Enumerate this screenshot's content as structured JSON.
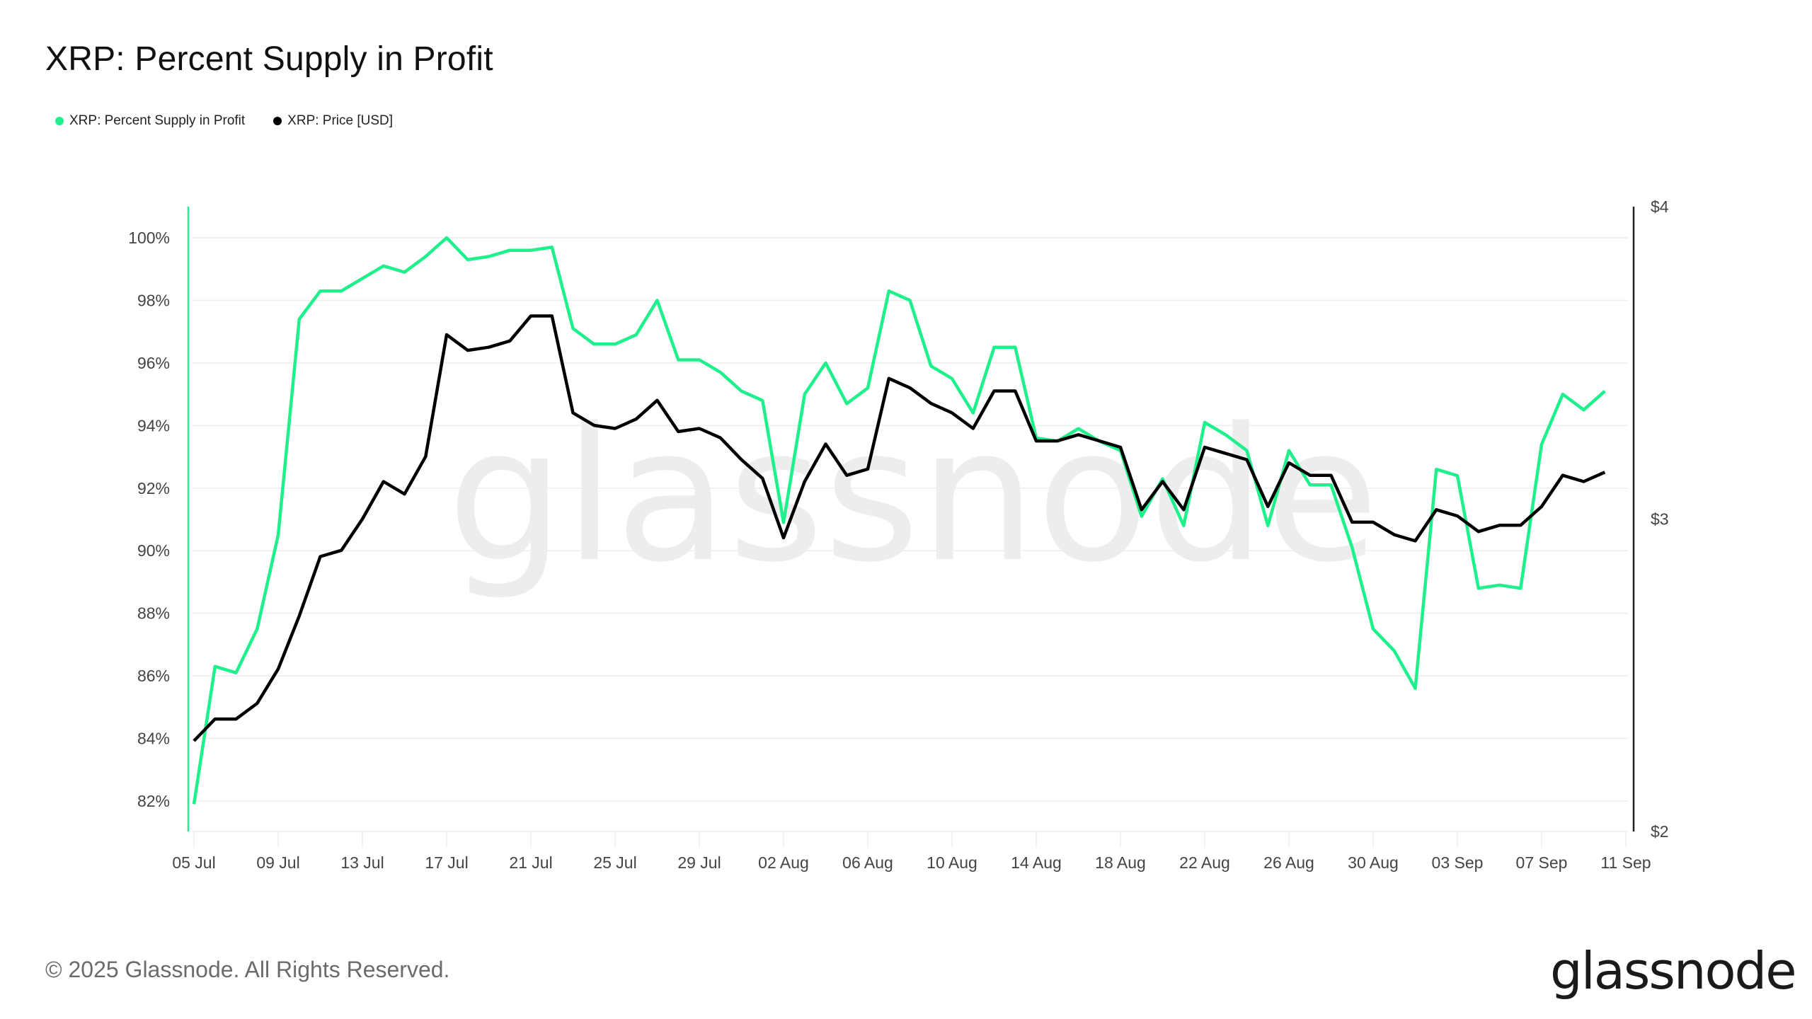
{
  "title": "XRP: Percent Supply in Profit",
  "legend": [
    {
      "label": "XRP: Percent Supply in Profit",
      "color": "#1ef08c"
    },
    {
      "label": "XRP: Price [USD]",
      "color": "#000000"
    }
  ],
  "footer": "© 2025 Glassnode. All Rights Reserved.",
  "brand": "glassnode",
  "watermark": "glassnode",
  "colors": {
    "supply": "#1ef08c",
    "price": "#000000",
    "grid": "#eeeeee",
    "axis_text": "#444444"
  },
  "chart_data": {
    "type": "line",
    "title": "XRP: Percent Supply in Profit",
    "xlabel": "",
    "ylabel": "Percent Supply in Profit",
    "y2label": "Price [USD]",
    "ylim": [
      81,
      101
    ],
    "y_ticks": [
      "82%",
      "84%",
      "86%",
      "88%",
      "90%",
      "92%",
      "94%",
      "96%",
      "98%",
      "100%"
    ],
    "y2lim": [
      2,
      4
    ],
    "y2_ticks": [
      "$2",
      "$3",
      "$4"
    ],
    "x_ticks": [
      "05 Jul",
      "09 Jul",
      "13 Jul",
      "17 Jul",
      "21 Jul",
      "25 Jul",
      "29 Jul",
      "02 Aug",
      "06 Aug",
      "10 Aug",
      "14 Aug",
      "18 Aug",
      "22 Aug",
      "26 Aug",
      "30 Aug",
      "03 Sep",
      "07 Sep",
      "11 Sep"
    ],
    "x_start": "05 Jul",
    "x_step_days": 1,
    "grid": true,
    "legend_position": "top-left",
    "series": [
      {
        "name": "XRP: Percent Supply in Profit",
        "axis": "left",
        "color": "#1ef08c",
        "values": [
          81.9,
          86.3,
          86.1,
          87.5,
          90.5,
          97.4,
          98.3,
          98.3,
          98.7,
          99.1,
          98.9,
          99.4,
          100.0,
          99.3,
          99.4,
          99.6,
          99.6,
          99.7,
          97.1,
          96.6,
          96.6,
          96.9,
          98.0,
          96.1,
          96.1,
          95.7,
          95.1,
          94.8,
          90.9,
          95.0,
          96.0,
          94.7,
          95.2,
          98.3,
          98.0,
          95.9,
          95.5,
          94.4,
          96.5,
          96.5,
          93.6,
          93.5,
          93.9,
          93.5,
          93.2,
          91.1,
          92.3,
          90.8,
          94.1,
          93.7,
          93.2,
          90.8,
          93.2,
          92.1,
          92.1,
          90.1,
          87.5,
          86.8,
          85.6,
          92.6,
          92.4,
          88.8,
          88.9,
          88.8,
          93.4,
          95.0,
          94.5,
          95.1
        ]
      },
      {
        "name": "XRP: Price [USD]",
        "axis": "right",
        "color": "#000000",
        "values": [
          2.29,
          2.36,
          2.36,
          2.41,
          2.52,
          2.69,
          2.88,
          2.9,
          3.0,
          3.12,
          3.08,
          3.2,
          3.59,
          3.54,
          3.55,
          3.57,
          3.65,
          3.65,
          3.34,
          3.3,
          3.29,
          3.32,
          3.38,
          3.28,
          3.29,
          3.26,
          3.19,
          3.13,
          2.94,
          3.12,
          3.24,
          3.14,
          3.16,
          3.45,
          3.42,
          3.37,
          3.34,
          3.29,
          3.41,
          3.41,
          3.25,
          3.25,
          3.27,
          3.25,
          3.23,
          3.03,
          3.12,
          3.03,
          3.23,
          3.21,
          3.19,
          3.04,
          3.18,
          3.14,
          3.14,
          2.99,
          2.99,
          2.95,
          2.93,
          3.03,
          3.01,
          2.96,
          2.98,
          2.98,
          3.04,
          3.14,
          3.12,
          3.15
        ]
      }
    ]
  }
}
